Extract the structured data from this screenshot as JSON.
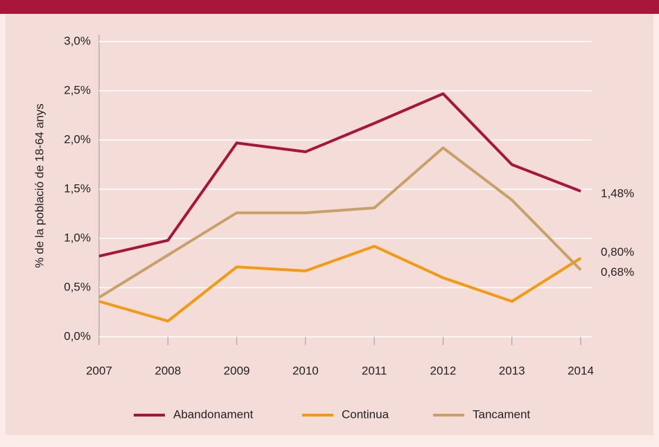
{
  "chart_data": {
    "type": "line",
    "ylabel": "% de la població de 18-64 anys",
    "categories": [
      "2007",
      "2008",
      "2009",
      "2010",
      "2011",
      "2012",
      "2013",
      "2014"
    ],
    "series": [
      {
        "name": "Abandonament",
        "color": "#a8153a",
        "values": [
          0.82,
          0.98,
          1.97,
          1.88,
          2.17,
          2.47,
          1.75,
          1.48
        ],
        "value_labels": [
          null,
          null,
          null,
          null,
          null,
          null,
          null,
          "1,48%"
        ]
      },
      {
        "name": "Continua",
        "color": "#f39a12",
        "values": [
          0.36,
          0.16,
          0.71,
          0.67,
          0.92,
          0.6,
          0.36,
          0.8
        ],
        "value_labels": [
          null,
          null,
          null,
          null,
          null,
          null,
          null,
          "0,80%"
        ]
      },
      {
        "name": "Tancament",
        "color": "#c8a06a",
        "values": [
          0.4,
          0.83,
          1.26,
          1.26,
          1.31,
          1.92,
          1.39,
          0.68
        ],
        "value_labels": [
          null,
          null,
          null,
          null,
          null,
          null,
          null,
          "0,68%"
        ]
      }
    ],
    "ylim": [
      0,
      3
    ],
    "yticks": [
      {
        "value": 0,
        "label": "0,0%"
      },
      {
        "value": 0.5,
        "label": "0,5%"
      },
      {
        "value": 1,
        "label": "1,0%"
      },
      {
        "value": 1.5,
        "label": "1,5%"
      },
      {
        "value": 2,
        "label": "2,0%"
      },
      {
        "value": 2.5,
        "label": "2,5%"
      },
      {
        "value": 3,
        "label": "3,0%"
      }
    ],
    "grid": true,
    "legend": "bottom"
  }
}
